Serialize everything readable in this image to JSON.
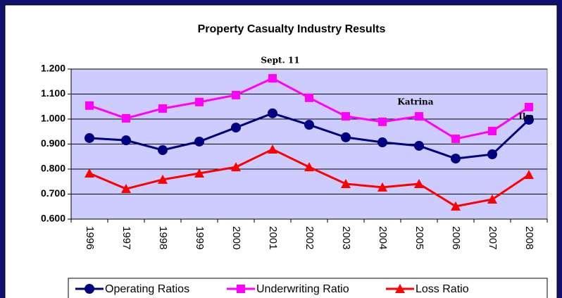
{
  "chart_data": {
    "type": "line",
    "title": "Property Casualty Industry Results",
    "categories": [
      "1996",
      "1997",
      "1998",
      "1999",
      "2000",
      "2001",
      "2002",
      "2003",
      "2004",
      "2005",
      "2006",
      "2007",
      "2008"
    ],
    "series": [
      {
        "name": "Operating Ratios",
        "color": "#000080",
        "marker": "circle",
        "values": [
          0.924,
          0.915,
          0.876,
          0.91,
          0.966,
          1.023,
          0.977,
          0.927,
          0.907,
          0.893,
          0.842,
          0.859,
          0.997
        ]
      },
      {
        "name": "Underwriting Ratio",
        "color": "#ff00ff",
        "marker": "square",
        "values": [
          1.054,
          1.003,
          1.042,
          1.068,
          1.096,
          1.163,
          1.085,
          1.011,
          0.989,
          1.011,
          0.921,
          0.952,
          1.048
        ]
      },
      {
        "name": "Loss Ratio",
        "color": "#ff0000",
        "marker": "triangle",
        "values": [
          0.783,
          0.721,
          0.758,
          0.783,
          0.808,
          0.879,
          0.808,
          0.741,
          0.727,
          0.741,
          0.651,
          0.679,
          0.777
        ]
      }
    ],
    "annotations": [
      "Sept. 11",
      "Katrina",
      "Ike"
    ],
    "ylim": [
      0.6,
      1.2
    ],
    "yticks": [
      {
        "value": 0.6,
        "label": "0.600"
      },
      {
        "value": 0.7,
        "label": "0.700"
      },
      {
        "value": 0.8,
        "label": "0.800"
      },
      {
        "value": 0.9,
        "label": "0.900"
      },
      {
        "value": 1.0,
        "label": "1.000"
      },
      {
        "value": 1.1,
        "label": "1.100"
      },
      {
        "value": 1.2,
        "label": "1.200"
      }
    ],
    "grid": true,
    "legend": "bottom",
    "plot_background": "#ccccff"
  }
}
